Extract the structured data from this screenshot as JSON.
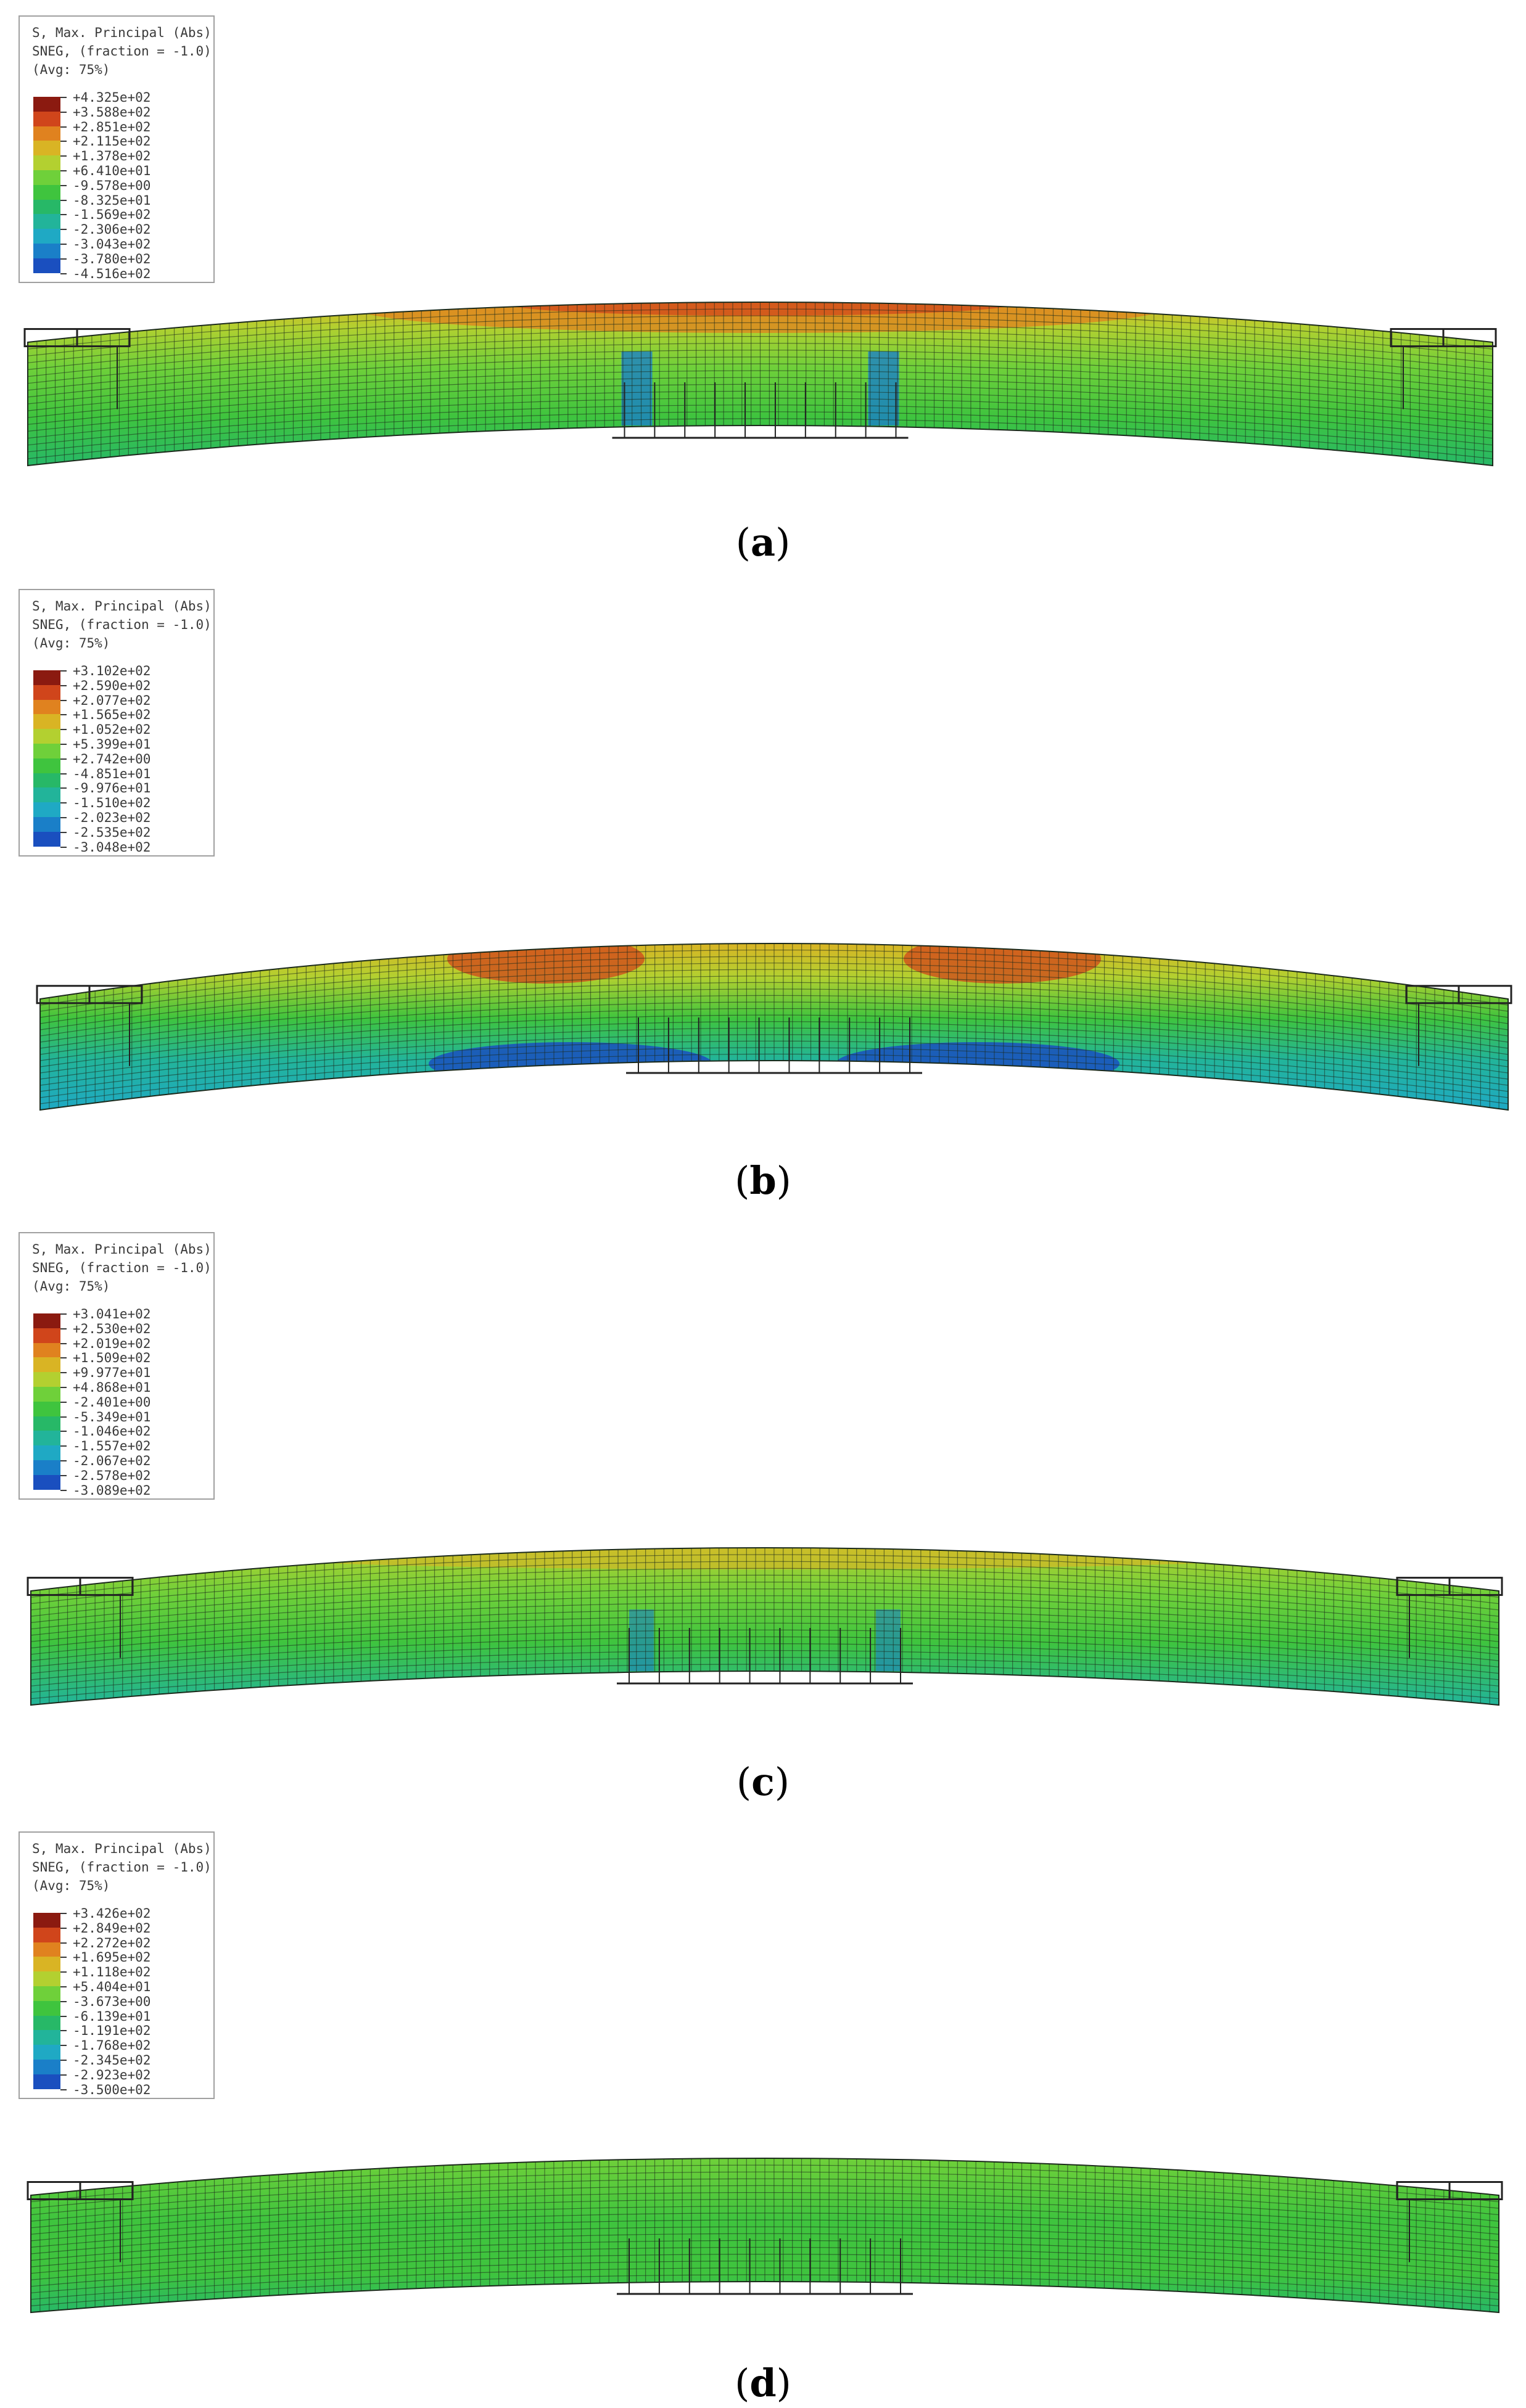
{
  "panels": [
    {
      "id": "a",
      "caption_open": "(",
      "caption_letter": "a",
      "caption_close": ")",
      "legend": {
        "title_line1": "S, Max. Principal (Abs)",
        "title_line2": "SNEG, (fraction = -1.0)",
        "title_line3": "(Avg: 75%)",
        "values": [
          "+4.325e+02",
          "+3.588e+02",
          "+2.851e+02",
          "+2.115e+02",
          "+1.378e+02",
          "+6.410e+01",
          "-9.578e+00",
          "-8.325e+01",
          "-1.569e+02",
          "-2.306e+02",
          "-3.043e+02",
          "-3.780e+02",
          "-4.516e+02"
        ]
      },
      "stress_pattern": "high-compression-top-mid"
    },
    {
      "id": "b",
      "caption_open": "(",
      "caption_letter": "b",
      "caption_close": ")",
      "legend": {
        "title_line1": "S, Max. Principal (Abs)",
        "title_line2": "SNEG, (fraction = -1.0)",
        "title_line3": "(Avg: 75%)",
        "values": [
          "+3.102e+02",
          "+2.590e+02",
          "+2.077e+02",
          "+1.565e+02",
          "+1.052e+02",
          "+5.399e+01",
          "+2.742e+00",
          "-4.851e+01",
          "-9.976e+01",
          "-1.510e+02",
          "-2.023e+02",
          "-2.535e+02",
          "-3.048e+02"
        ]
      },
      "stress_pattern": "strong-gradient"
    },
    {
      "id": "c",
      "caption_open": "(",
      "caption_letter": "c",
      "caption_close": ")",
      "legend": {
        "title_line1": "S, Max. Principal (Abs)",
        "title_line2": "SNEG, (fraction = -1.0)",
        "title_line3": "(Avg: 75%)",
        "values": [
          "+3.041e+02",
          "+2.530e+02",
          "+2.019e+02",
          "+1.509e+02",
          "+9.977e+01",
          "+4.868e+01",
          "-2.401e+00",
          "-5.349e+01",
          "-1.046e+02",
          "-1.557e+02",
          "-2.067e+02",
          "-2.578e+02",
          "-3.089e+02"
        ]
      },
      "stress_pattern": "moderate"
    },
    {
      "id": "d",
      "caption_open": "(",
      "caption_letter": "d",
      "caption_close": ")",
      "legend": {
        "title_line1": "S, Max. Principal (Abs)",
        "title_line2": "SNEG, (fraction = -1.0)",
        "title_line3": "(Avg: 75%)",
        "values": [
          "+3.426e+02",
          "+2.849e+02",
          "+2.272e+02",
          "+1.695e+02",
          "+1.118e+02",
          "+5.404e+01",
          "-3.673e+00",
          "-6.139e+01",
          "-1.191e+02",
          "-1.768e+02",
          "-2.345e+02",
          "-2.923e+02",
          "-3.500e+02"
        ]
      },
      "stress_pattern": "mild"
    }
  ],
  "colors": {
    "scale": [
      "#8b1a10",
      "#d0451b",
      "#e0821f",
      "#d9b424",
      "#b3d030",
      "#6fd03a",
      "#3fc43e",
      "#27b867",
      "#22b49a",
      "#1fa9c4",
      "#1a7fc8",
      "#1a4fbf",
      "#1f2ba8"
    ]
  }
}
